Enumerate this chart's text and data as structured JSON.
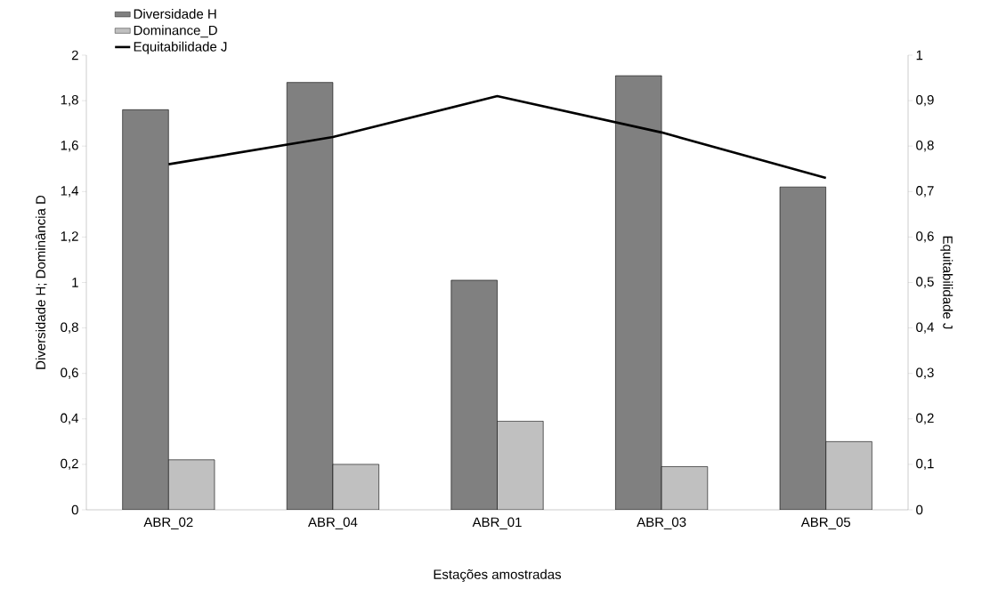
{
  "chart_data": {
    "type": "bar",
    "categories": [
      "ABR_02",
      "ABR_04",
      "ABR_01",
      "ABR_03",
      "ABR_05"
    ],
    "series": [
      {
        "name": "Diversidade H",
        "axis": "y",
        "color": "#808080",
        "values": [
          1.76,
          1.88,
          1.01,
          1.91,
          1.42
        ]
      },
      {
        "name": "Dominance_D",
        "axis": "y",
        "color": "#c0c0c0",
        "values": [
          0.22,
          0.2,
          0.39,
          0.19,
          0.3
        ]
      },
      {
        "name": "Equitabilidade J",
        "type": "line",
        "axis": "y2",
        "color": "#000000",
        "values": [
          0.76,
          0.82,
          0.91,
          0.83,
          0.73
        ]
      }
    ],
    "xlabel": "Estações amostradas",
    "ylabel": "Diversidade  H; Dominância D",
    "y2label": "Equitabilidade J",
    "ylim": [
      0,
      2
    ],
    "yticks": [
      0,
      {
        "value": 0.2,
        "label": "0,2"
      },
      {
        "value": 0.4,
        "label": "0,4"
      },
      {
        "value": 0.6,
        "label": "0,6"
      },
      {
        "value": 0.8,
        "label": "0,8"
      },
      1,
      {
        "value": 1.2,
        "label": "1,2"
      },
      {
        "value": 1.4,
        "label": "1,4"
      },
      {
        "value": 1.6,
        "label": "1,6"
      },
      {
        "value": 1.8,
        "label": "1,8"
      },
      2
    ],
    "y2lim": [
      0,
      1
    ],
    "y2ticks": [
      0,
      {
        "value": 0.1,
        "label": "0,1"
      },
      {
        "value": 0.2,
        "label": "0,2"
      },
      {
        "value": 0.3,
        "label": "0,3"
      },
      {
        "value": 0.4,
        "label": "0,4"
      },
      {
        "value": 0.5,
        "label": "0,5"
      },
      {
        "value": 0.6,
        "label": "0,6"
      },
      {
        "value": 0.7,
        "label": "0,7"
      },
      {
        "value": 0.8,
        "label": "0,8"
      },
      {
        "value": 0.9,
        "label": "0,9"
      },
      1
    ],
    "legend": "top left"
  }
}
